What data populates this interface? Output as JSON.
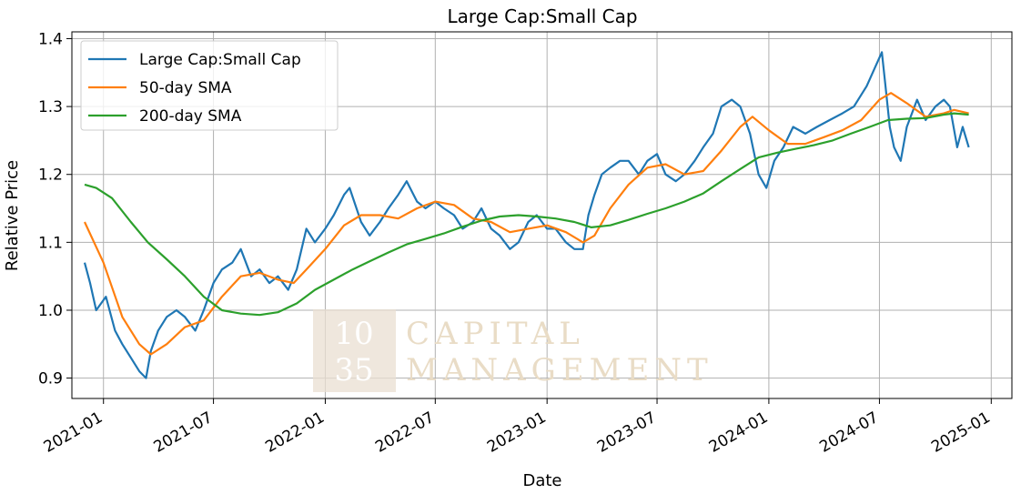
{
  "chart_data": {
    "type": "line",
    "title": "Large Cap:Small Cap",
    "xlabel": "Date",
    "ylabel": "Relative Price",
    "xlim": [
      "2020-11-10",
      "2025-02-04"
    ],
    "ylim": [
      0.87,
      1.41
    ],
    "x_ticks": [
      "2021-01",
      "2021-07",
      "2022-01",
      "2022-07",
      "2023-01",
      "2023-07",
      "2024-01",
      "2024-07",
      "2025-01"
    ],
    "y_ticks": [
      "0.9",
      "1.0",
      "1.1",
      "1.2",
      "1.3",
      "1.4"
    ],
    "grid": true,
    "legend_position": "upper-left",
    "series": [
      {
        "name": "Large Cap:Small Cap",
        "color": "#1f77b4",
        "points": [
          [
            "2020-12-01",
            1.07
          ],
          [
            "2020-12-10",
            1.04
          ],
          [
            "2020-12-20",
            1.0
          ],
          [
            "2021-01-05",
            1.02
          ],
          [
            "2021-01-20",
            0.97
          ],
          [
            "2021-02-01",
            0.95
          ],
          [
            "2021-02-15",
            0.93
          ],
          [
            "2021-03-01",
            0.91
          ],
          [
            "2021-03-12",
            0.9
          ],
          [
            "2021-03-20",
            0.94
          ],
          [
            "2021-04-01",
            0.97
          ],
          [
            "2021-04-15",
            0.99
          ],
          [
            "2021-05-01",
            1.0
          ],
          [
            "2021-05-15",
            0.99
          ],
          [
            "2021-06-01",
            0.97
          ],
          [
            "2021-06-15",
            1.0
          ],
          [
            "2021-07-01",
            1.04
          ],
          [
            "2021-07-15",
            1.06
          ],
          [
            "2021-08-01",
            1.07
          ],
          [
            "2021-08-15",
            1.09
          ],
          [
            "2021-09-01",
            1.05
          ],
          [
            "2021-09-15",
            1.06
          ],
          [
            "2021-10-01",
            1.04
          ],
          [
            "2021-10-15",
            1.05
          ],
          [
            "2021-11-01",
            1.03
          ],
          [
            "2021-11-15",
            1.06
          ],
          [
            "2021-12-01",
            1.12
          ],
          [
            "2021-12-15",
            1.1
          ],
          [
            "2022-01-01",
            1.12
          ],
          [
            "2022-01-15",
            1.14
          ],
          [
            "2022-02-01",
            1.17
          ],
          [
            "2022-02-10",
            1.18
          ],
          [
            "2022-03-01",
            1.13
          ],
          [
            "2022-03-15",
            1.11
          ],
          [
            "2022-04-01",
            1.13
          ],
          [
            "2022-04-15",
            1.15
          ],
          [
            "2022-05-01",
            1.17
          ],
          [
            "2022-05-15",
            1.19
          ],
          [
            "2022-06-01",
            1.16
          ],
          [
            "2022-06-15",
            1.15
          ],
          [
            "2022-07-01",
            1.16
          ],
          [
            "2022-07-15",
            1.15
          ],
          [
            "2022-08-01",
            1.14
          ],
          [
            "2022-08-15",
            1.12
          ],
          [
            "2022-09-01",
            1.13
          ],
          [
            "2022-09-15",
            1.15
          ],
          [
            "2022-10-01",
            1.12
          ],
          [
            "2022-10-15",
            1.11
          ],
          [
            "2022-11-01",
            1.09
          ],
          [
            "2022-11-15",
            1.1
          ],
          [
            "2022-12-01",
            1.13
          ],
          [
            "2022-12-15",
            1.14
          ],
          [
            "2023-01-01",
            1.12
          ],
          [
            "2023-01-15",
            1.12
          ],
          [
            "2023-02-01",
            1.1
          ],
          [
            "2023-02-15",
            1.09
          ],
          [
            "2023-03-01",
            1.09
          ],
          [
            "2023-03-10",
            1.14
          ],
          [
            "2023-03-20",
            1.17
          ],
          [
            "2023-04-01",
            1.2
          ],
          [
            "2023-04-15",
            1.21
          ],
          [
            "2023-05-01",
            1.22
          ],
          [
            "2023-05-15",
            1.22
          ],
          [
            "2023-06-01",
            1.2
          ],
          [
            "2023-06-15",
            1.22
          ],
          [
            "2023-07-01",
            1.23
          ],
          [
            "2023-07-15",
            1.2
          ],
          [
            "2023-08-01",
            1.19
          ],
          [
            "2023-08-15",
            1.2
          ],
          [
            "2023-09-01",
            1.22
          ],
          [
            "2023-09-15",
            1.24
          ],
          [
            "2023-10-01",
            1.26
          ],
          [
            "2023-10-15",
            1.3
          ],
          [
            "2023-11-01",
            1.31
          ],
          [
            "2023-11-15",
            1.3
          ],
          [
            "2023-12-01",
            1.26
          ],
          [
            "2023-12-15",
            1.2
          ],
          [
            "2023-12-28",
            1.18
          ],
          [
            "2024-01-10",
            1.22
          ],
          [
            "2024-01-25",
            1.24
          ],
          [
            "2024-02-10",
            1.27
          ],
          [
            "2024-03-01",
            1.26
          ],
          [
            "2024-03-20",
            1.27
          ],
          [
            "2024-04-10",
            1.28
          ],
          [
            "2024-05-01",
            1.29
          ],
          [
            "2024-05-20",
            1.3
          ],
          [
            "2024-06-10",
            1.33
          ],
          [
            "2024-06-25",
            1.36
          ],
          [
            "2024-07-05",
            1.38
          ],
          [
            "2024-07-11",
            1.33
          ],
          [
            "2024-07-18",
            1.27
          ],
          [
            "2024-07-25",
            1.24
          ],
          [
            "2024-08-05",
            1.22
          ],
          [
            "2024-08-15",
            1.27
          ],
          [
            "2024-09-01",
            1.31
          ],
          [
            "2024-09-15",
            1.28
          ],
          [
            "2024-10-01",
            1.3
          ],
          [
            "2024-10-15",
            1.31
          ],
          [
            "2024-10-25",
            1.3
          ],
          [
            "2024-11-06",
            1.24
          ],
          [
            "2024-11-15",
            1.27
          ],
          [
            "2024-11-25",
            1.24
          ]
        ]
      },
      {
        "name": "50-day SMA",
        "color": "#ff7f0e",
        "points": [
          [
            "2020-12-01",
            1.13
          ],
          [
            "2021-01-01",
            1.07
          ],
          [
            "2021-02-01",
            0.99
          ],
          [
            "2021-03-01",
            0.95
          ],
          [
            "2021-03-20",
            0.935
          ],
          [
            "2021-04-15",
            0.95
          ],
          [
            "2021-05-15",
            0.975
          ],
          [
            "2021-06-15",
            0.985
          ],
          [
            "2021-07-15",
            1.02
          ],
          [
            "2021-08-15",
            1.05
          ],
          [
            "2021-09-15",
            1.055
          ],
          [
            "2021-10-15",
            1.045
          ],
          [
            "2021-11-10",
            1.04
          ],
          [
            "2021-12-01",
            1.06
          ],
          [
            "2022-01-01",
            1.09
          ],
          [
            "2022-02-01",
            1.125
          ],
          [
            "2022-03-01",
            1.14
          ],
          [
            "2022-04-01",
            1.14
          ],
          [
            "2022-05-01",
            1.135
          ],
          [
            "2022-06-01",
            1.15
          ],
          [
            "2022-07-01",
            1.16
          ],
          [
            "2022-08-01",
            1.155
          ],
          [
            "2022-09-01",
            1.135
          ],
          [
            "2022-10-01",
            1.13
          ],
          [
            "2022-11-01",
            1.115
          ],
          [
            "2022-12-01",
            1.12
          ],
          [
            "2023-01-01",
            1.125
          ],
          [
            "2023-02-01",
            1.115
          ],
          [
            "2023-03-01",
            1.1
          ],
          [
            "2023-03-20",
            1.11
          ],
          [
            "2023-04-15",
            1.15
          ],
          [
            "2023-05-15",
            1.185
          ],
          [
            "2023-06-15",
            1.21
          ],
          [
            "2023-07-15",
            1.215
          ],
          [
            "2023-08-15",
            1.2
          ],
          [
            "2023-09-15",
            1.205
          ],
          [
            "2023-10-15",
            1.235
          ],
          [
            "2023-11-15",
            1.27
          ],
          [
            "2023-12-05",
            1.285
          ],
          [
            "2024-01-01",
            1.265
          ],
          [
            "2024-02-01",
            1.245
          ],
          [
            "2024-03-01",
            1.245
          ],
          [
            "2024-04-01",
            1.255
          ],
          [
            "2024-05-01",
            1.265
          ],
          [
            "2024-06-01",
            1.28
          ],
          [
            "2024-07-01",
            1.31
          ],
          [
            "2024-07-20",
            1.32
          ],
          [
            "2024-08-15",
            1.305
          ],
          [
            "2024-09-15",
            1.285
          ],
          [
            "2024-10-15",
            1.29
          ],
          [
            "2024-11-01",
            1.295
          ],
          [
            "2024-11-25",
            1.29
          ]
        ]
      },
      {
        "name": "200-day SMA",
        "color": "#2ca02c",
        "points": [
          [
            "2020-12-01",
            1.185
          ],
          [
            "2020-12-20",
            1.18
          ],
          [
            "2021-01-15",
            1.165
          ],
          [
            "2021-02-15",
            1.13
          ],
          [
            "2021-03-15",
            1.1
          ],
          [
            "2021-04-15",
            1.075
          ],
          [
            "2021-05-15",
            1.05
          ],
          [
            "2021-06-15",
            1.02
          ],
          [
            "2021-07-15",
            1.0
          ],
          [
            "2021-08-15",
            0.995
          ],
          [
            "2021-09-15",
            0.993
          ],
          [
            "2021-10-15",
            0.997
          ],
          [
            "2021-11-15",
            1.01
          ],
          [
            "2021-12-15",
            1.03
          ],
          [
            "2022-01-15",
            1.045
          ],
          [
            "2022-02-15",
            1.06
          ],
          [
            "2022-03-15",
            1.072
          ],
          [
            "2022-04-15",
            1.085
          ],
          [
            "2022-05-15",
            1.097
          ],
          [
            "2022-06-15",
            1.105
          ],
          [
            "2022-07-15",
            1.113
          ],
          [
            "2022-08-15",
            1.123
          ],
          [
            "2022-09-15",
            1.132
          ],
          [
            "2022-10-15",
            1.138
          ],
          [
            "2022-11-15",
            1.14
          ],
          [
            "2022-12-15",
            1.138
          ],
          [
            "2023-01-15",
            1.135
          ],
          [
            "2023-02-15",
            1.13
          ],
          [
            "2023-03-15",
            1.122
          ],
          [
            "2023-04-15",
            1.125
          ],
          [
            "2023-05-15",
            1.133
          ],
          [
            "2023-06-15",
            1.142
          ],
          [
            "2023-07-15",
            1.15
          ],
          [
            "2023-08-15",
            1.16
          ],
          [
            "2023-09-15",
            1.172
          ],
          [
            "2023-10-15",
            1.19
          ],
          [
            "2023-11-15",
            1.208
          ],
          [
            "2023-12-15",
            1.225
          ],
          [
            "2024-01-15",
            1.232
          ],
          [
            "2024-02-15",
            1.238
          ],
          [
            "2024-03-15",
            1.243
          ],
          [
            "2024-04-15",
            1.25
          ],
          [
            "2024-05-15",
            1.26
          ],
          [
            "2024-06-15",
            1.27
          ],
          [
            "2024-07-15",
            1.28
          ],
          [
            "2024-08-15",
            1.282
          ],
          [
            "2024-09-15",
            1.283
          ],
          [
            "2024-10-15",
            1.288
          ],
          [
            "2024-11-01",
            1.29
          ],
          [
            "2024-11-25",
            1.288
          ]
        ]
      }
    ]
  },
  "watermark": {
    "box_line1": "10",
    "box_line2": "35",
    "text_line1": "CAPITAL",
    "text_line2": "MANAGEMENT"
  }
}
